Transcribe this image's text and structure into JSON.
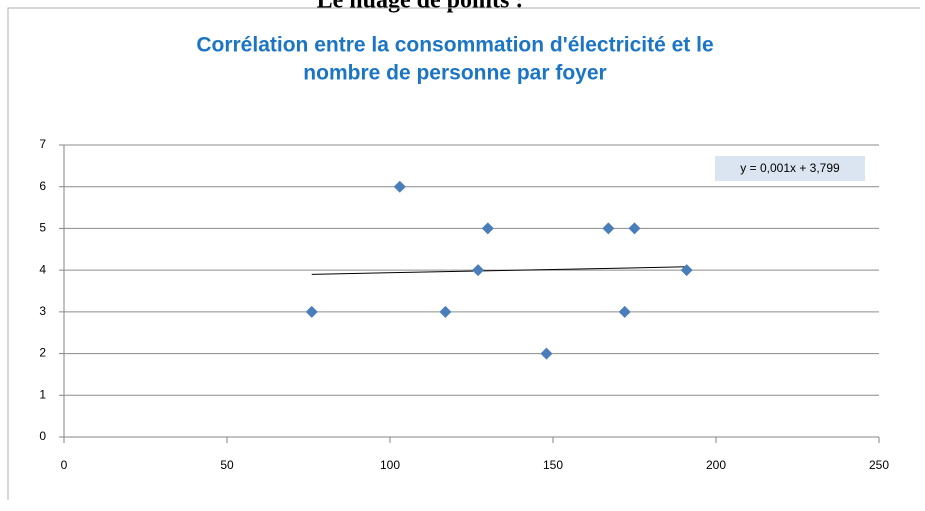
{
  "page_heading": "Le nuage de points :",
  "chart_data": {
    "type": "scatter",
    "title": [
      "Corrélation entre la consommation d'électricité et le",
      "nombre de personne par foyer"
    ],
    "x": [
      76,
      103,
      117,
      127,
      130,
      148,
      167,
      172,
      175,
      191
    ],
    "values": [
      3,
      6,
      3,
      4,
      5,
      2,
      5,
      3,
      5,
      4
    ],
    "color": "#4a7ebb",
    "xlim": [
      0,
      250
    ],
    "xticks": [
      0,
      50,
      100,
      150,
      200,
      250
    ],
    "ylim": [
      0,
      7
    ],
    "yticks": [
      0,
      1,
      2,
      3,
      4,
      5,
      6,
      7
    ],
    "grid": true,
    "trendline": {
      "label": "y = 0,001x + 3,799",
      "x": [
        76,
        191
      ],
      "values": [
        3.9,
        4.08
      ]
    }
  }
}
